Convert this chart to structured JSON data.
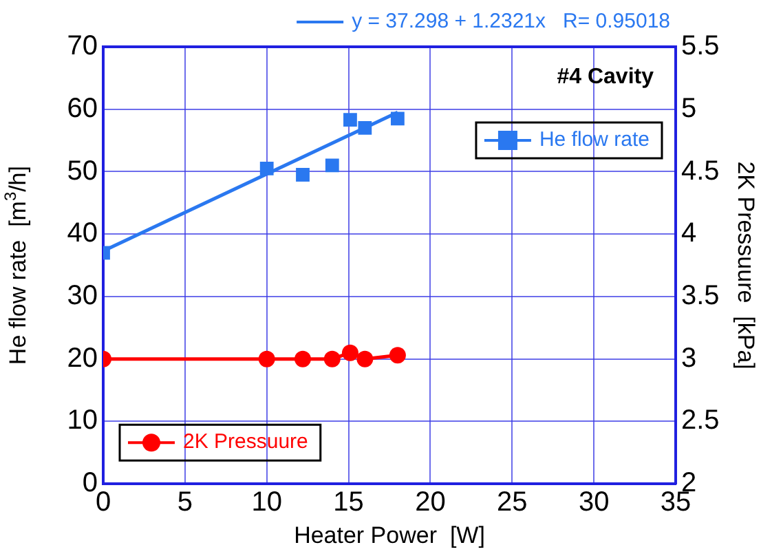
{
  "chart_data": {
    "type": "scatter",
    "xlabel": "Heater Power  [W]",
    "ylabel": "He flow rate  [m$^{3}$/h]",
    "y2label": "2K Pressuure  [kPa]",
    "annotations": [
      "#4 Cavity"
    ],
    "xlim": [
      0,
      35
    ],
    "xticks": [
      0,
      5,
      10,
      15,
      20,
      25,
      30,
      35
    ],
    "ylim": [
      0,
      70
    ],
    "yticks": [
      0,
      10,
      20,
      30,
      40,
      50,
      60,
      70
    ],
    "y2lim": [
      2,
      5.5
    ],
    "y2ticks": [
      2,
      2.5,
      3,
      3.5,
      4,
      4.5,
      5,
      5.5
    ],
    "grid": true,
    "legend": "top right",
    "marker": "square",
    "series": [
      {
        "name": "He flow rate",
        "color": "#2a78f0",
        "x": [
          0,
          10,
          12.2,
          14,
          15.1,
          16,
          18
        ],
        "values": [
          37.0,
          50.5,
          49.5,
          51.0,
          58.3,
          57.0,
          58.5
        ]
      },
      {
        "name": "2K Pressuure",
        "type": "line",
        "axis": "y2",
        "marker": "circle",
        "color": "#ff0000",
        "x": [
          0,
          10,
          12.2,
          14,
          15.1,
          16,
          18
        ],
        "values": [
          3.0,
          3.0,
          3.0,
          3.0,
          3.05,
          3.0,
          3.03
        ]
      },
      {
        "name": "y = 37.298 + 1.2321x   R= 0.95018",
        "type": "line",
        "marker": "none",
        "color": "#2a78f0",
        "x": [
          0,
          18
        ],
        "values": [
          37.3,
          59.5
        ]
      }
    ]
  }
}
